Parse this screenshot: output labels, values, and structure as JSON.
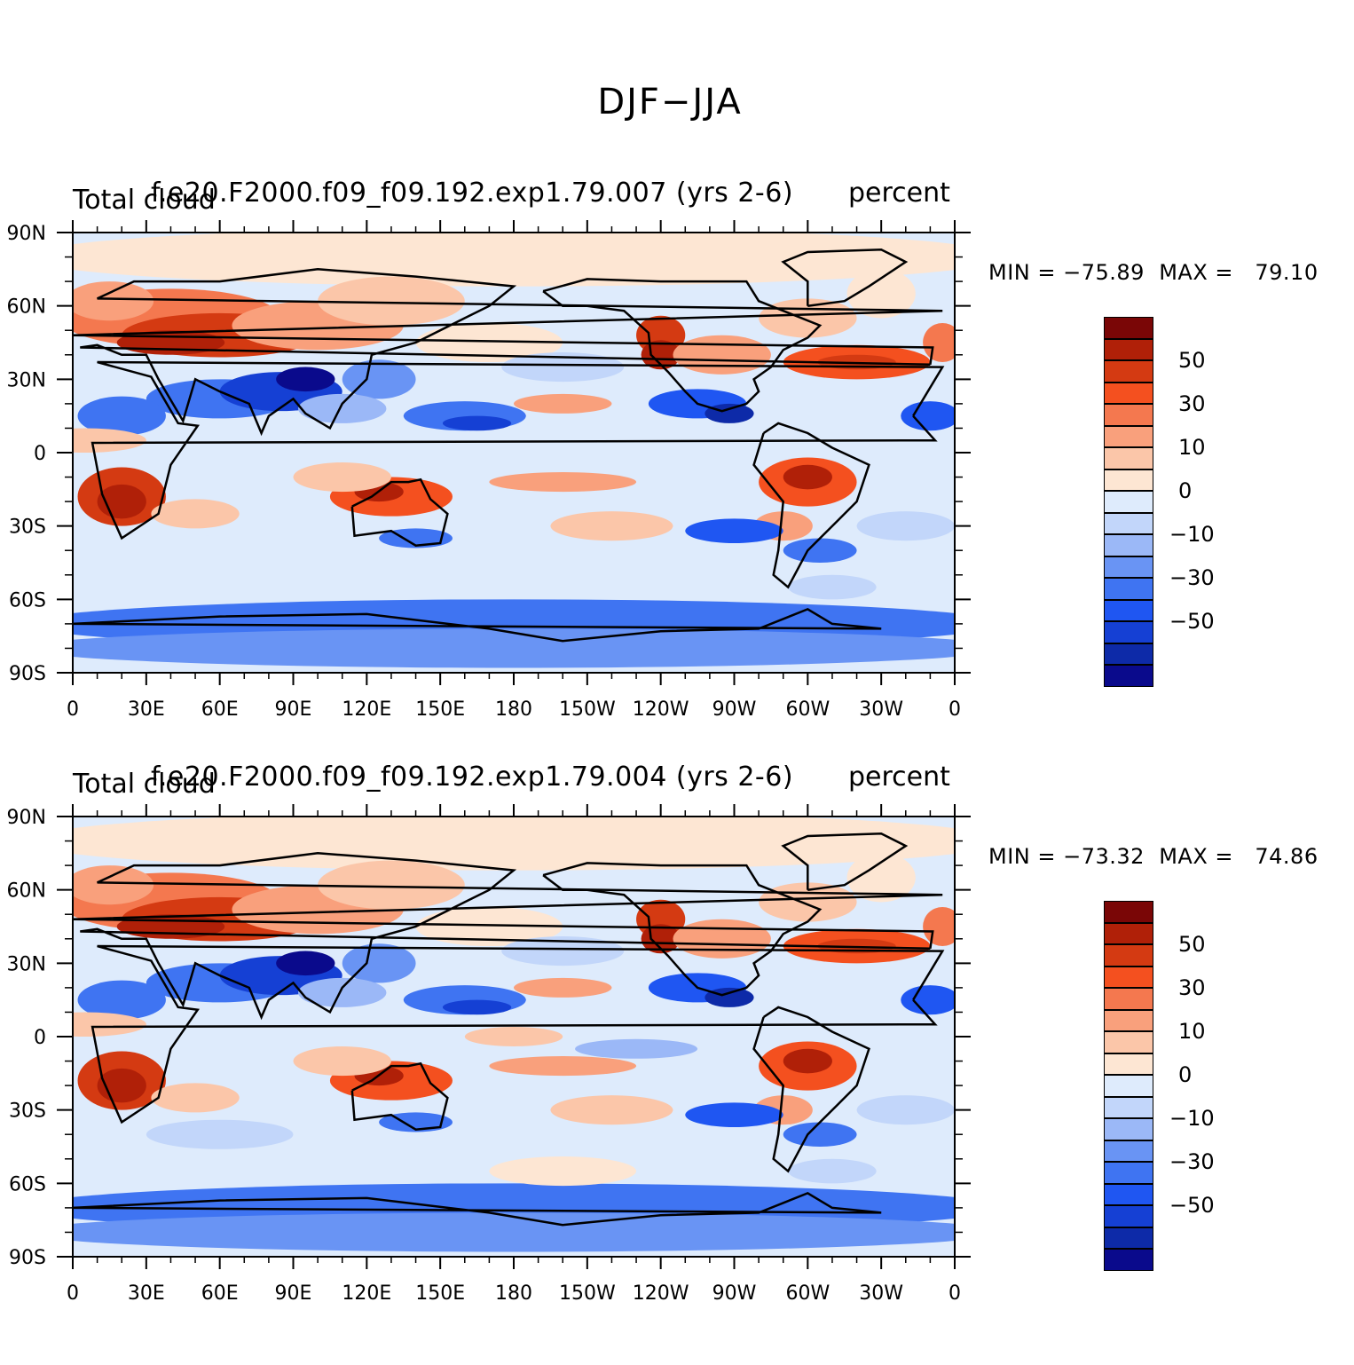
{
  "title": "DJF−JJA",
  "colorscale": [
    {
      "label": "",
      "color": "#0a0a8c"
    },
    {
      "label": "",
      "color": "#0d2aa8"
    },
    {
      "label": "−50",
      "color": "#1540d4"
    },
    {
      "label": "",
      "color": "#1f56f2"
    },
    {
      "label": "−30",
      "color": "#3f74f2"
    },
    {
      "label": "",
      "color": "#6994f4"
    },
    {
      "label": "−10",
      "color": "#9bb8f7"
    },
    {
      "label": "",
      "color": "#c2d6fa"
    },
    {
      "label": "0",
      "color": "#deebfc"
    },
    {
      "label": "",
      "color": "#fde6d3"
    },
    {
      "label": "10",
      "color": "#fbc6a9"
    },
    {
      "label": "",
      "color": "#f9a07c"
    },
    {
      "label": "30",
      "color": "#f4784f"
    },
    {
      "label": "",
      "color": "#f4501f"
    },
    {
      "label": "50",
      "color": "#d43a12"
    },
    {
      "label": "",
      "color": "#b02008"
    },
    {
      "label": "",
      "color": "#7a0606"
    }
  ],
  "axes": {
    "lat_labels": [
      "90N",
      "60N",
      "30N",
      "0",
      "30S",
      "60S",
      "90S"
    ],
    "lon_labels": [
      "0",
      "30E",
      "60E",
      "90E",
      "120E",
      "150E",
      "180",
      "150W",
      "120W",
      "90W",
      "60W",
      "30W",
      "0"
    ]
  },
  "panels": [
    {
      "left_title": "Total cloud",
      "center_title": "f.e20.F2000.f09_f09.192.exp1.79.007 (yrs 2-6)",
      "right_title": "percent",
      "min_label": "MIN = −75.89",
      "max_label": "MAX =   79.10",
      "min": -75.89,
      "max": 79.1
    },
    {
      "left_title": "Total cloud",
      "center_title": "f.e20.F2000.f09_f09.192.exp1.79.004 (yrs 2-6)",
      "right_title": "percent",
      "min_label": "MIN = −73.32",
      "max_label": "MAX =   74.86",
      "min": -73.32,
      "max": 74.86
    }
  ]
}
